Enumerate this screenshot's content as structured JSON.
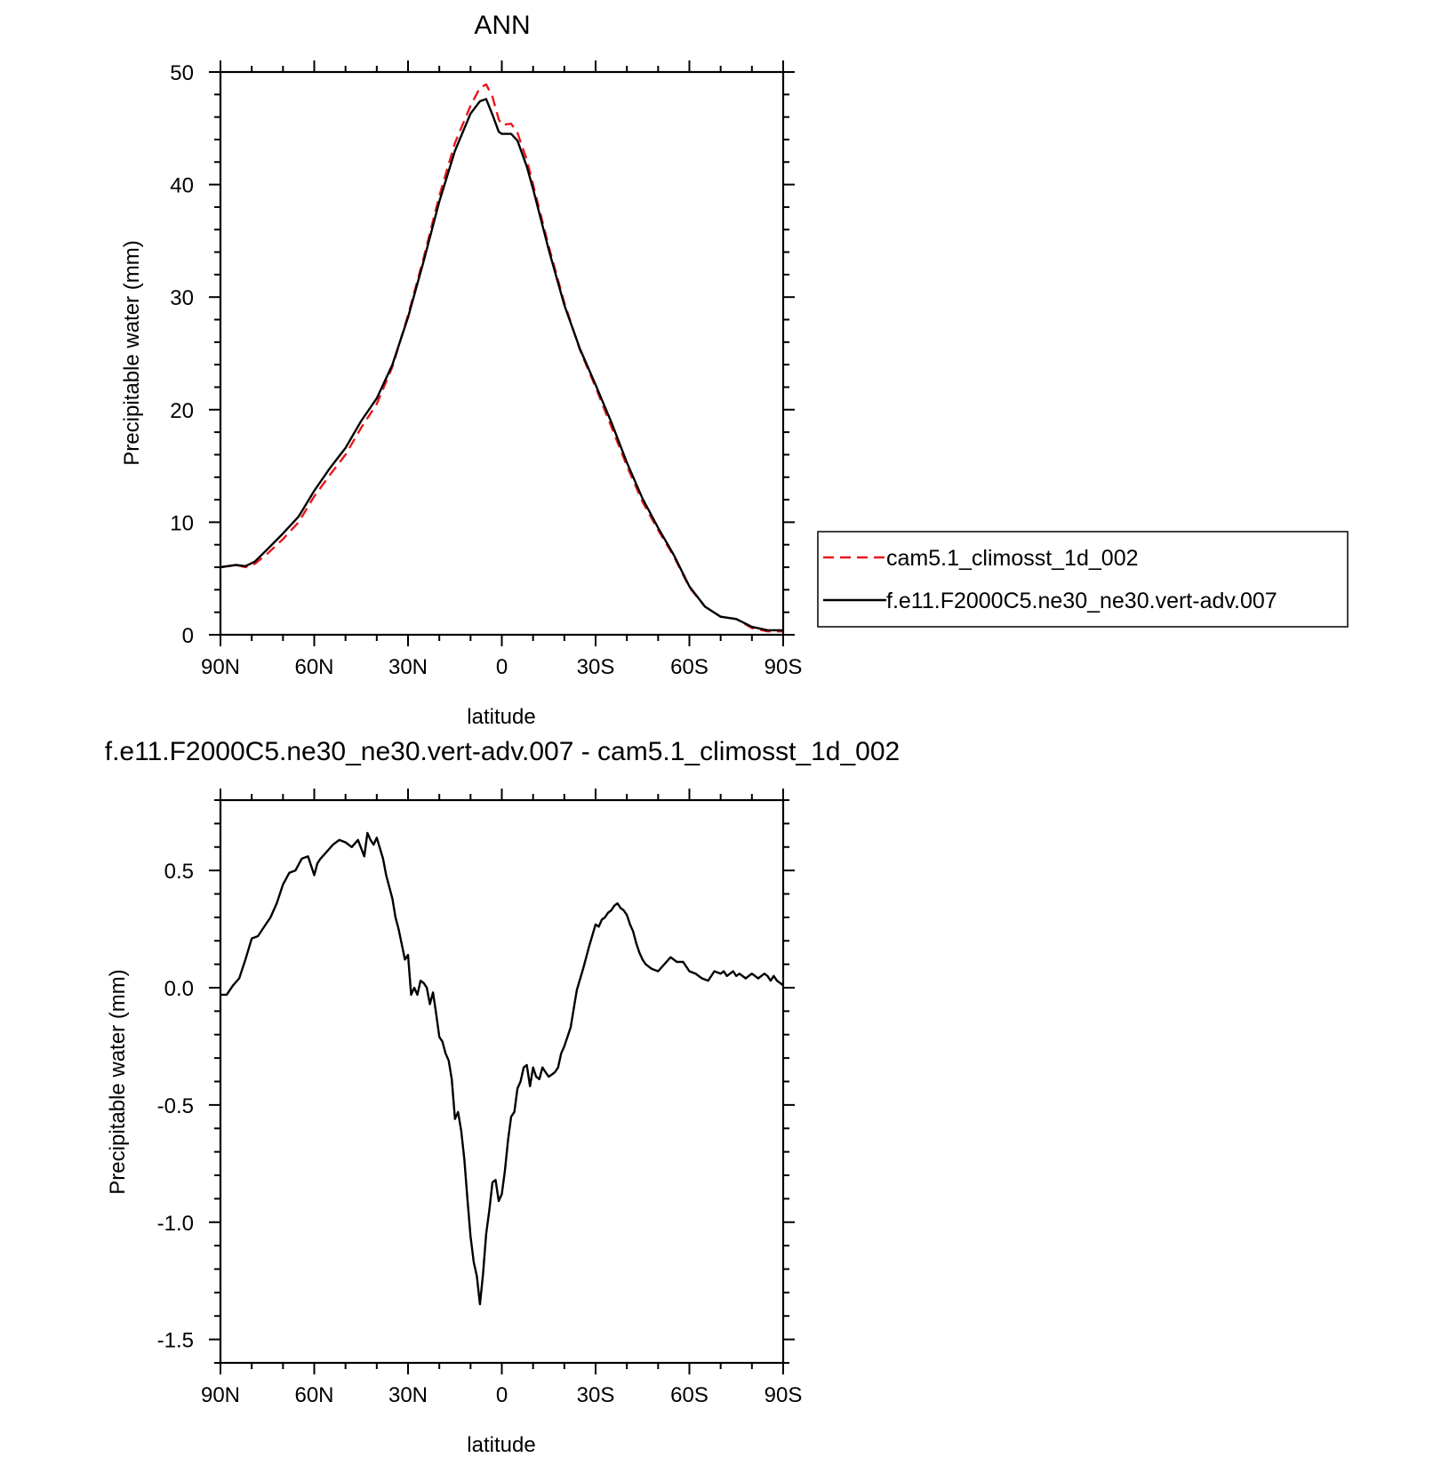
{
  "chart_data": [
    {
      "type": "line",
      "title": "ANN",
      "xlabel": "latitude",
      "ylabel": "Precipitable water (mm)",
      "xlim": [
        90,
        -90
      ],
      "ylim": [
        0,
        50
      ],
      "xticks": [
        90,
        60,
        30,
        0,
        -30,
        -60,
        -90
      ],
      "xtick_labels": [
        "90N",
        "60N",
        "30N",
        "0",
        "30S",
        "60S",
        "90S"
      ],
      "yticks": [
        0,
        10,
        20,
        30,
        40,
        50
      ],
      "ytick_labels": [
        "0",
        "10",
        "20",
        "30",
        "40",
        "50"
      ],
      "grid": false,
      "legend_position": "right",
      "series": [
        {
          "name": "cam5.1_climosst_1d_002",
          "color": "#e8191c",
          "dash": "dashed",
          "x": [
            90,
            85,
            82,
            79,
            75,
            70,
            65,
            60,
            55,
            50,
            45,
            40,
            35,
            30,
            25,
            20,
            15,
            10,
            7,
            5,
            3,
            1,
            0,
            -3,
            -5,
            -8,
            -10,
            -15,
            -20,
            -25,
            -30,
            -35,
            -40,
            -45,
            -50,
            -55,
            -60,
            -65,
            -70,
            -75,
            -80,
            -85,
            -90
          ],
          "y": [
            6.0,
            6.2,
            6.0,
            6.3,
            7.2,
            8.5,
            10.0,
            12.3,
            14.2,
            16.0,
            18.4,
            20.5,
            23.8,
            28.4,
            33.5,
            39.0,
            43.7,
            47.0,
            48.6,
            48.9,
            47.8,
            45.8,
            45.3,
            45.4,
            44.6,
            42.2,
            40.0,
            34.5,
            29.5,
            25.3,
            22.0,
            18.5,
            15.0,
            11.8,
            9.3,
            7.0,
            4.2,
            2.5,
            1.6,
            1.4,
            0.6,
            0.3,
            0.3
          ]
        },
        {
          "name": "f.e11.F2000C5.ne30_ne30.vert-adv.007",
          "color": "#000000",
          "dash": "solid",
          "x": [
            90,
            85,
            82,
            79,
            75,
            70,
            65,
            60,
            55,
            50,
            45,
            40,
            35,
            30,
            25,
            20,
            15,
            10,
            7,
            5,
            3,
            1,
            0,
            -3,
            -5,
            -8,
            -10,
            -15,
            -20,
            -25,
            -30,
            -35,
            -40,
            -45,
            -50,
            -55,
            -60,
            -65,
            -70,
            -75,
            -80,
            -85,
            -90
          ],
          "y": [
            6.0,
            6.2,
            6.1,
            6.5,
            7.6,
            9.0,
            10.5,
            12.8,
            14.8,
            16.6,
            19.0,
            21.0,
            24.0,
            28.2,
            33.2,
            38.5,
            43.0,
            46.3,
            47.4,
            47.6,
            46.2,
            44.7,
            44.5,
            44.5,
            43.9,
            41.6,
            39.6,
            34.2,
            29.3,
            25.4,
            22.2,
            18.9,
            15.3,
            12.1,
            9.5,
            7.1,
            4.3,
            2.5,
            1.6,
            1.4,
            0.7,
            0.4,
            0.4
          ]
        }
      ]
    },
    {
      "type": "line",
      "title": "f.e11.F2000C5.ne30_ne30.vert-adv.007 - cam5.1_climosst_1d_002",
      "xlabel": "latitude",
      "ylabel": "Precipitable water (mm)",
      "xlim": [
        90,
        -90
      ],
      "ylim": [
        -1.6,
        0.8
      ],
      "xticks": [
        90,
        60,
        30,
        0,
        -30,
        -60,
        -90
      ],
      "xtick_labels": [
        "90N",
        "60N",
        "30N",
        "0",
        "30S",
        "60S",
        "90S"
      ],
      "yticks": [
        0.5,
        0.0,
        -0.5,
        -1.0,
        -1.5
      ],
      "ytick_labels": [
        "0.5",
        "0.0",
        "-0.5",
        "-1.0",
        "-1.5"
      ],
      "grid": false,
      "series": [
        {
          "color": "#000000",
          "dash": "solid",
          "x": [
            90,
            88,
            86,
            84,
            82,
            80,
            78,
            76,
            74,
            72,
            70,
            68,
            66,
            64,
            62,
            60,
            59,
            58,
            56,
            54,
            52,
            50,
            48,
            46,
            44,
            43,
            42,
            41,
            40,
            38,
            37,
            35,
            34,
            33,
            31,
            30,
            29,
            28,
            27,
            26,
            25,
            24,
            23,
            22,
            21,
            20,
            19,
            18,
            17,
            16,
            15,
            14,
            13,
            12,
            11,
            10,
            9,
            8,
            7,
            6,
            5,
            4,
            3,
            2,
            1,
            0,
            -1,
            -2,
            -3,
            -4,
            -5,
            -6,
            -7,
            -8,
            -9,
            -10,
            -11,
            -12,
            -13,
            -14,
            -15,
            -16,
            -17,
            -18,
            -19,
            -20,
            -22,
            -24,
            -26,
            -28,
            -30,
            -31,
            -32,
            -33,
            -34,
            -35,
            -36,
            -37,
            -38,
            -39,
            -40,
            -41,
            -42,
            -43,
            -44,
            -45,
            -46,
            -47,
            -48,
            -50,
            -52,
            -54,
            -56,
            -58,
            -60,
            -62,
            -64,
            -66,
            -68,
            -70,
            -71,
            -72,
            -73,
            -74,
            -75,
            -76,
            -78,
            -80,
            -82,
            -84,
            -85,
            -86,
            -87,
            -88,
            -89,
            -90
          ],
          "y": [
            -0.03,
            -0.03,
            0.01,
            0.04,
            0.12,
            0.21,
            0.22,
            0.26,
            0.3,
            0.36,
            0.44,
            0.49,
            0.5,
            0.55,
            0.56,
            0.48,
            0.53,
            0.55,
            0.58,
            0.61,
            0.63,
            0.62,
            0.6,
            0.63,
            0.56,
            0.66,
            0.63,
            0.61,
            0.64,
            0.55,
            0.48,
            0.38,
            0.3,
            0.25,
            0.12,
            0.14,
            -0.03,
            0.0,
            -0.03,
            0.03,
            0.02,
            0.0,
            -0.07,
            -0.02,
            -0.11,
            -0.21,
            -0.23,
            -0.28,
            -0.31,
            -0.39,
            -0.56,
            -0.53,
            -0.61,
            -0.73,
            -0.9,
            -1.06,
            -1.17,
            -1.23,
            -1.35,
            -1.22,
            -1.05,
            -0.95,
            -0.83,
            -0.82,
            -0.91,
            -0.88,
            -0.78,
            -0.65,
            -0.55,
            -0.53,
            -0.43,
            -0.4,
            -0.34,
            -0.33,
            -0.42,
            -0.34,
            -0.38,
            -0.39,
            -0.34,
            -0.36,
            -0.38,
            -0.37,
            -0.36,
            -0.34,
            -0.28,
            -0.25,
            -0.17,
            -0.01,
            0.08,
            0.18,
            0.27,
            0.26,
            0.29,
            0.3,
            0.32,
            0.33,
            0.35,
            0.36,
            0.34,
            0.33,
            0.31,
            0.27,
            0.24,
            0.19,
            0.15,
            0.12,
            0.1,
            0.09,
            0.08,
            0.07,
            0.1,
            0.13,
            0.11,
            0.11,
            0.07,
            0.06,
            0.04,
            0.03,
            0.07,
            0.06,
            0.07,
            0.05,
            0.06,
            0.07,
            0.05,
            0.06,
            0.04,
            0.06,
            0.04,
            0.06,
            0.05,
            0.03,
            0.05,
            0.03,
            0.02,
            0.01
          ]
        }
      ]
    }
  ]
}
